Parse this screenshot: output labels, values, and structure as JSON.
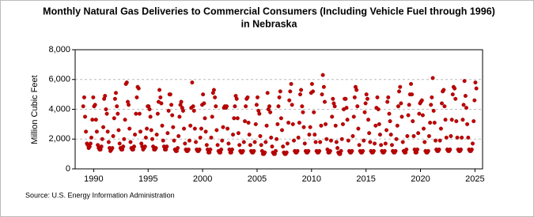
{
  "chart_data": {
    "type": "scatter",
    "title": [
      "Monthly Natural Gas Deliveries to Commercial Consumers (Including Vehicle Fuel through 1996)",
      "in Nebraska"
    ],
    "y_label": "Million Cubic Feet",
    "source": "Source: U.S. Energy Information Administration",
    "color": "#c00000",
    "grid": true,
    "xlim": [
      1988.3,
      2025.7
    ],
    "xticks": [
      1990,
      1995,
      2000,
      2005,
      2010,
      2015,
      2020,
      2025
    ],
    "ylim": [
      0,
      8000
    ],
    "yticks": [
      {
        "value": 0,
        "label": "0"
      },
      {
        "value": 2000,
        "label": "2,000"
      },
      {
        "value": 4000,
        "label": "4,000"
      },
      {
        "value": 6000,
        "label": "6,000"
      },
      {
        "value": 8000,
        "label": "8,000"
      }
    ],
    "x": [
      1989.04,
      1989.13,
      1989.21,
      1989.29,
      1989.38,
      1989.46,
      1989.54,
      1989.63,
      1989.71,
      1989.79,
      1989.88,
      1989.96,
      1990.04,
      1990.13,
      1990.21,
      1990.29,
      1990.38,
      1990.46,
      1990.54,
      1990.63,
      1990.71,
      1990.79,
      1990.88,
      1990.96,
      1991.04,
      1991.13,
      1991.21,
      1991.29,
      1991.38,
      1991.46,
      1991.54,
      1991.63,
      1991.71,
      1991.79,
      1991.88,
      1991.96,
      1992.04,
      1992.13,
      1992.21,
      1992.29,
      1992.38,
      1992.46,
      1992.54,
      1992.63,
      1992.71,
      1992.79,
      1992.88,
      1992.96,
      1993.04,
      1993.13,
      1993.21,
      1993.29,
      1993.38,
      1993.46,
      1993.54,
      1993.63,
      1993.71,
      1993.79,
      1993.88,
      1993.96,
      1994.04,
      1994.13,
      1994.21,
      1994.29,
      1994.38,
      1994.46,
      1994.54,
      1994.63,
      1994.71,
      1994.79,
      1994.88,
      1994.96,
      1995.04,
      1995.13,
      1995.21,
      1995.29,
      1995.38,
      1995.46,
      1995.54,
      1995.63,
      1995.71,
      1995.79,
      1995.88,
      1995.96,
      1996.04,
      1996.13,
      1996.21,
      1996.29,
      1996.38,
      1996.46,
      1996.54,
      1996.63,
      1996.71,
      1996.79,
      1996.88,
      1996.96,
      1997.04,
      1997.13,
      1997.21,
      1997.29,
      1997.38,
      1997.46,
      1997.54,
      1997.63,
      1997.71,
      1997.79,
      1997.88,
      1997.96,
      1998.04,
      1998.13,
      1998.21,
      1998.29,
      1998.38,
      1998.46,
      1998.54,
      1998.63,
      1998.71,
      1998.79,
      1998.88,
      1998.96,
      1999.04,
      1999.13,
      1999.21,
      1999.29,
      1999.38,
      1999.46,
      1999.54,
      1999.63,
      1999.71,
      1999.79,
      1999.88,
      1999.96,
      2000.04,
      2000.13,
      2000.21,
      2000.29,
      2000.38,
      2000.46,
      2000.54,
      2000.63,
      2000.71,
      2000.79,
      2000.88,
      2000.96,
      2001.04,
      2001.13,
      2001.21,
      2001.29,
      2001.38,
      2001.46,
      2001.54,
      2001.63,
      2001.71,
      2001.79,
      2001.88,
      2001.96,
      2002.04,
      2002.13,
      2002.21,
      2002.29,
      2002.38,
      2002.46,
      2002.54,
      2002.63,
      2002.71,
      2002.79,
      2002.88,
      2002.96,
      2003.04,
      2003.13,
      2003.21,
      2003.29,
      2003.38,
      2003.46,
      2003.54,
      2003.63,
      2003.71,
      2003.79,
      2003.88,
      2003.96,
      2004.04,
      2004.13,
      2004.21,
      2004.29,
      2004.38,
      2004.46,
      2004.54,
      2004.63,
      2004.71,
      2004.79,
      2004.88,
      2004.96,
      2005.04,
      2005.13,
      2005.21,
      2005.29,
      2005.38,
      2005.46,
      2005.54,
      2005.63,
      2005.71,
      2005.79,
      2005.88,
      2005.96,
      2006.04,
      2006.13,
      2006.21,
      2006.29,
      2006.38,
      2006.46,
      2006.54,
      2006.63,
      2006.71,
      2006.79,
      2006.88,
      2006.96,
      2007.04,
      2007.13,
      2007.21,
      2007.29,
      2007.38,
      2007.46,
      2007.54,
      2007.63,
      2007.71,
      2007.79,
      2007.88,
      2007.96,
      2008.04,
      2008.13,
      2008.21,
      2008.29,
      2008.38,
      2008.46,
      2008.54,
      2008.63,
      2008.71,
      2008.79,
      2008.88,
      2008.96,
      2009.04,
      2009.13,
      2009.21,
      2009.29,
      2009.38,
      2009.46,
      2009.54,
      2009.63,
      2009.71,
      2009.79,
      2009.88,
      2009.96,
      2010.04,
      2010.13,
      2010.21,
      2010.29,
      2010.38,
      2010.46,
      2010.54,
      2010.63,
      2010.71,
      2010.79,
      2010.88,
      2010.96,
      2011.04,
      2011.13,
      2011.21,
      2011.29,
      2011.38,
      2011.46,
      2011.54,
      2011.63,
      2011.71,
      2011.79,
      2011.88,
      2011.96,
      2012.04,
      2012.13,
      2012.21,
      2012.29,
      2012.38,
      2012.46,
      2012.54,
      2012.63,
      2012.71,
      2012.79,
      2012.88,
      2012.96,
      2013.04,
      2013.13,
      2013.21,
      2013.29,
      2013.38,
      2013.46,
      2013.54,
      2013.63,
      2013.71,
      2013.79,
      2013.88,
      2013.96,
      2014.04,
      2014.13,
      2014.21,
      2014.29,
      2014.38,
      2014.46,
      2014.54,
      2014.63,
      2014.71,
      2014.79,
      2014.88,
      2014.96,
      2015.04,
      2015.13,
      2015.21,
      2015.29,
      2015.38,
      2015.46,
      2015.54,
      2015.63,
      2015.71,
      2015.79,
      2015.88,
      2015.96,
      2016.04,
      2016.13,
      2016.21,
      2016.29,
      2016.38,
      2016.46,
      2016.54,
      2016.63,
      2016.71,
      2016.79,
      2016.88,
      2016.96,
      2017.04,
      2017.13,
      2017.21,
      2017.29,
      2017.38,
      2017.46,
      2017.54,
      2017.63,
      2017.71,
      2017.79,
      2017.88,
      2017.96,
      2018.04,
      2018.13,
      2018.21,
      2018.29,
      2018.38,
      2018.46,
      2018.54,
      2018.63,
      2018.71,
      2018.79,
      2018.88,
      2018.96,
      2019.04,
      2019.13,
      2019.21,
      2019.29,
      2019.38,
      2019.46,
      2019.54,
      2019.63,
      2019.71,
      2019.79,
      2019.88,
      2019.96,
      2020.04,
      2020.13,
      2020.21,
      2020.29,
      2020.38,
      2020.46,
      2020.54,
      2020.63,
      2020.71,
      2020.79,
      2020.88,
      2020.96,
      2021.04,
      2021.13,
      2021.21,
      2021.29,
      2021.38,
      2021.46,
      2021.54,
      2021.63,
      2021.71,
      2021.79,
      2021.88,
      2021.96,
      2022.04,
      2022.13,
      2022.21,
      2022.29,
      2022.38,
      2022.46,
      2022.54,
      2022.63,
      2022.71,
      2022.79,
      2022.88,
      2022.96,
      2023.04,
      2023.13,
      2023.21,
      2023.29,
      2023.38,
      2023.46,
      2023.54,
      2023.63,
      2023.71,
      2023.79,
      2023.88,
      2023.96,
      2024.04,
      2024.13,
      2024.21,
      2024.29,
      2024.38,
      2024.46,
      2024.54,
      2024.63,
      2024.71,
      2024.79,
      2024.88,
      2024.96,
      2025.04,
      2025.13
    ],
    "values": [
      4200,
      4800,
      3500,
      2500,
      1700,
      1600,
      1400,
      1500,
      1700,
      2100,
      3300,
      4800,
      4200,
      4300,
      3300,
      2500,
      1600,
      1400,
      1300,
      1300,
      1500,
      2000,
      2800,
      4700,
      4900,
      4000,
      3700,
      2500,
      1800,
      1400,
      1200,
      1300,
      1400,
      2200,
      3400,
      4700,
      5100,
      4200,
      3700,
      2600,
      1700,
      1400,
      1300,
      1300,
      1500,
      2000,
      3300,
      5700,
      5800,
      4500,
      4300,
      2700,
      1800,
      1400,
      1300,
      1300,
      1500,
      2300,
      3700,
      4800,
      5500,
      5400,
      3700,
      2500,
      1700,
      1500,
      1300,
      1400,
      1500,
      2100,
      2700,
      4200,
      4200,
      4000,
      3500,
      2600,
      2000,
      1500,
      1300,
      1300,
      1400,
      2300,
      3700,
      4500,
      5300,
      4800,
      4400,
      2900,
      1900,
      1500,
      1300,
      1300,
      1500,
      2400,
      3900,
      5000,
      5000,
      4300,
      3600,
      2800,
      1900,
      1300,
      1200,
      1200,
      1400,
      2200,
      3500,
      4300,
      4500,
      4100,
      3900,
      2700,
      1700,
      1300,
      1200,
      1200,
      1300,
      1900,
      2900,
      4100,
      5800,
      4200,
      3900,
      2700,
      1800,
      1300,
      1200,
      1200,
      1300,
      2100,
      2700,
      4300,
      5000,
      4400,
      3400,
      2500,
      1600,
      1300,
      1100,
      1100,
      1300,
      2100,
      3500,
      5100,
      5300,
      4800,
      4200,
      2600,
      1600,
      1200,
      1100,
      1100,
      1300,
      1900,
      2800,
      4100,
      4200,
      4100,
      4200,
      2700,
      1700,
      1300,
      1100,
      1100,
      1300,
      2300,
      3400,
      4200,
      4900,
      4700,
      3400,
      2400,
      1600,
      1200,
      1100,
      1100,
      1200,
      1800,
      3200,
      4200,
      4700,
      4800,
      3100,
      2300,
      1600,
      1200,
      1100,
      1100,
      1200,
      1800,
      3000,
      4300,
      4800,
      3900,
      3700,
      2200,
      1600,
      1200,
      1000,
      1000,
      1100,
      1800,
      2900,
      5100,
      4000,
      4200,
      3800,
      2100,
      1500,
      1100,
      1000,
      1000,
      1200,
      2000,
      3000,
      4200,
      4800,
      5200,
      3400,
      2600,
      1500,
      1100,
      1000,
      1000,
      1100,
      1700,
      3100,
      4600,
      5200,
      5700,
      4300,
      3000,
      1900,
      1200,
      1100,
      1100,
      1200,
      2100,
      3100,
      5000,
      5300,
      4200,
      3800,
      2800,
      1700,
      1200,
      1100,
      1100,
      1200,
      2300,
      2800,
      5100,
      5700,
      5200,
      3800,
      2300,
      1800,
      1200,
      1100,
      1100,
      1200,
      1800,
      2900,
      5000,
      6300,
      5500,
      4500,
      3000,
      2000,
      1300,
      1100,
      1100,
      1200,
      1900,
      3500,
      4700,
      4400,
      4200,
      2900,
      1800,
      1400,
      1100,
      1000,
      1000,
      1200,
      2000,
      3000,
      4000,
      4700,
      4700,
      4100,
      3300,
      1900,
      1200,
      1100,
      1100,
      1200,
      2200,
      3500,
      4800,
      5500,
      5300,
      4200,
      2700,
      1600,
      1200,
      1100,
      1100,
      1200,
      1900,
      3800,
      4400,
      5000,
      4700,
      3300,
      2400,
      1800,
      1200,
      1100,
      1100,
      1200,
      1700,
      2900,
      4100,
      4800,
      4000,
      3000,
      2300,
      1600,
      1200,
      1100,
      1100,
      1200,
      1700,
      2600,
      4500,
      4800,
      3700,
      3200,
      2300,
      1600,
      1200,
      1100,
      1100,
      1200,
      2000,
      2900,
      4200,
      5200,
      5500,
      4400,
      3500,
      1800,
      1200,
      1100,
      1100,
      1300,
      2200,
      3600,
      4300,
      5000,
      5700,
      5000,
      3200,
      2200,
      1300,
      1100,
      1100,
      1300,
      2400,
      3700,
      4400,
      4500,
      4600,
      3600,
      2700,
      1800,
      1200,
      1100,
      1100,
      1200,
      2200,
      3100,
      4300,
      4800,
      6100,
      3900,
      3100,
      1900,
      1300,
      1200,
      1200,
      1300,
      1900,
      2700,
      4400,
      5200,
      5300,
      4200,
      3300,
      2100,
      1300,
      1200,
      1200,
      1300,
      2200,
      3300,
      5000,
      5500,
      5400,
      4700,
      3200,
      2100,
      1300,
      1200,
      1200,
      1300,
      2100,
      3300,
      4300,
      5900,
      4900,
      4100,
      3000,
      2100,
      1300,
      1200,
      1200,
      1300,
      1700,
      3200,
      4600,
      5800,
      5400
    ]
  }
}
